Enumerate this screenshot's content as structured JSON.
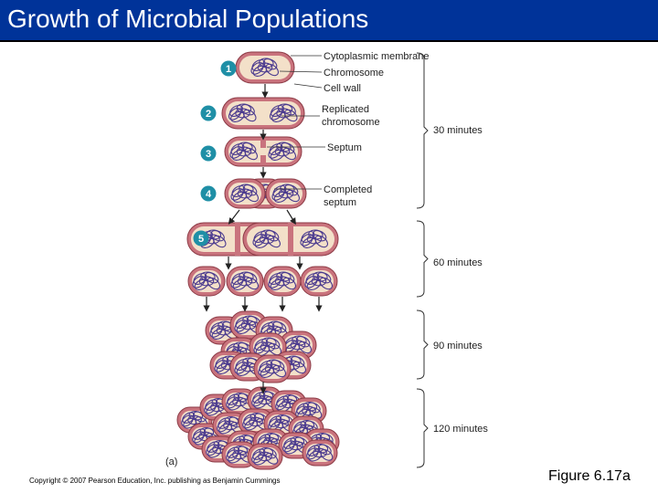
{
  "title": "Growth of Microbial Populations",
  "diagram": {
    "labels": {
      "cytoplasmic_membrane": "Cytoplasmic membrane",
      "chromosome": "Chromosome",
      "cell_wall": "Cell wall",
      "replicated_line1": "Replicated",
      "replicated_line2": "chromosome",
      "septum": "Septum",
      "completed_line1": "Completed",
      "completed_line2": "septum",
      "panel": "(a)"
    },
    "steps": [
      "1",
      "2",
      "3",
      "4",
      "5"
    ],
    "time_labels": [
      "30 minutes",
      "60 minutes",
      "90 minutes",
      "120 minutes"
    ],
    "colors": {
      "title_bar": "#003399",
      "cell_wall": "#c9737d",
      "cytoplasm": "#f3e0c9",
      "chromosome": "#4b3b8f",
      "step_circle": "#1f8fa6"
    }
  },
  "footer": {
    "copyright": "Copyright © 2007 Pearson Education, Inc. publishing as Benjamin Cummings",
    "figure_label": "Figure 6.17a"
  }
}
